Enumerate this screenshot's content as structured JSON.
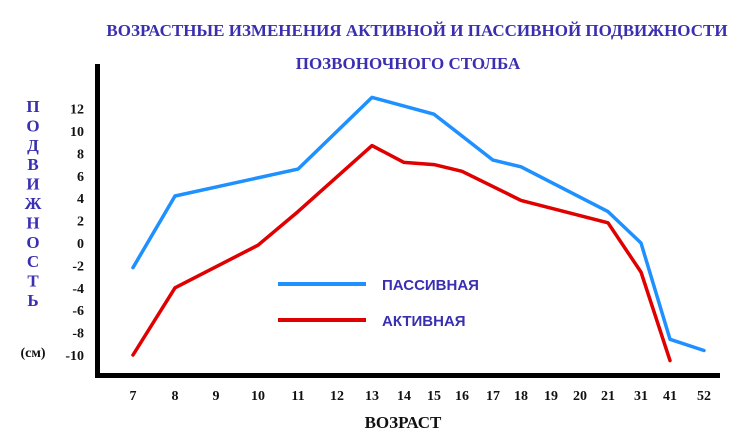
{
  "chart_data": {
    "type": "line",
    "title_line1": "ВОЗРАСТНЫЕ ИЗМЕНЕНИЯ АКТИВНОЙ И ПАССИВНОЙ ПОДВИЖНОСТИ",
    "title_line2": "ПОЗВОНОЧНОГО СТОЛБА",
    "xlabel": "ВОЗРАСТ",
    "ylabel": "ПОДВИЖНОСТЬ",
    "yunit": "(см)",
    "categories": [
      "7",
      "8",
      "9",
      "10",
      "11",
      "12",
      "13",
      "14",
      "15",
      "16",
      "17",
      "18",
      "19",
      "20",
      "21",
      "31",
      "41",
      "52"
    ],
    "yticks": [
      12,
      10,
      8,
      6,
      4,
      2,
      0,
      -2,
      -4,
      -6,
      -8,
      -10
    ],
    "ylim": [
      -10,
      12
    ],
    "legend_position": "center",
    "series": [
      {
        "name": "ПАССИВНАЯ",
        "color": "#1e90ff",
        "points": [
          [
            7,
            -2.2
          ],
          [
            8,
            4.2
          ],
          [
            11,
            6.6
          ],
          [
            13,
            13
          ],
          [
            15,
            11.5
          ],
          [
            17,
            7.4
          ],
          [
            18,
            6.8
          ],
          [
            21,
            2.8
          ],
          [
            31,
            0
          ],
          [
            41,
            -8.6
          ],
          [
            52,
            -9.6
          ]
        ]
      },
      {
        "name": "АКТИВНАЯ",
        "color": "#e00000",
        "points": [
          [
            7,
            -10
          ],
          [
            8,
            -4
          ],
          [
            10,
            -0.2
          ],
          [
            11,
            2.8
          ],
          [
            13,
            8.7
          ],
          [
            14,
            7.2
          ],
          [
            15,
            7
          ],
          [
            16,
            6.4
          ],
          [
            18,
            3.8
          ],
          [
            21,
            1.8
          ],
          [
            31,
            -2.6
          ],
          [
            41,
            -10.5
          ]
        ]
      }
    ]
  }
}
